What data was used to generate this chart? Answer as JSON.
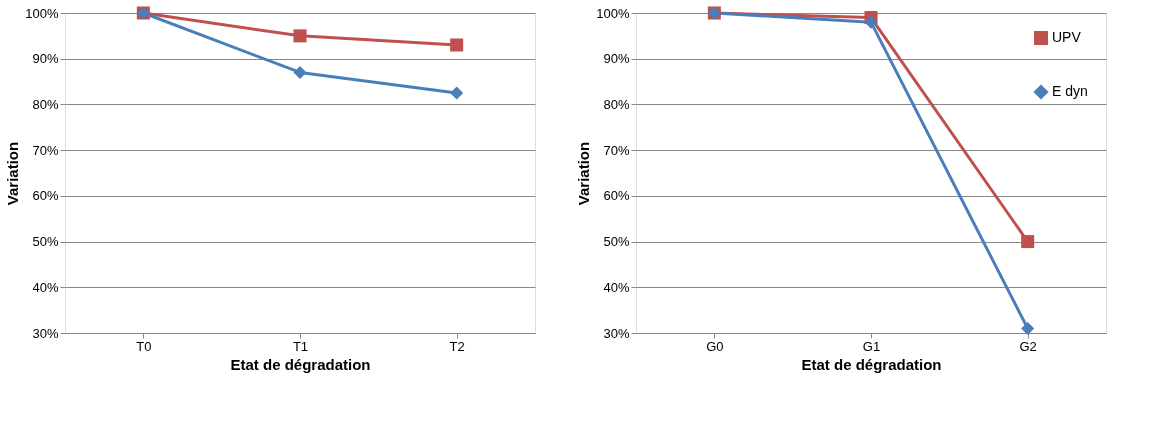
{
  "chart_data": [
    {
      "type": "line",
      "xlabel": "Etat de dégradation",
      "ylabel": "Variation",
      "categories": [
        "T0",
        "T1",
        "T2"
      ],
      "ylim": [
        30,
        100
      ],
      "yticks": [
        {
          "value": 30,
          "label": "30%"
        },
        {
          "value": 40,
          "label": "40%"
        },
        {
          "value": 50,
          "label": "50%"
        },
        {
          "value": 60,
          "label": "60%"
        },
        {
          "value": 70,
          "label": "70%"
        },
        {
          "value": 80,
          "label": "80%"
        },
        {
          "value": 90,
          "label": "90%"
        },
        {
          "value": 100,
          "label": "100%"
        }
      ],
      "grid": "y",
      "legend": false,
      "series": [
        {
          "color": "#c0504d",
          "marker": "square",
          "values": [
            100,
            95,
            93
          ]
        },
        {
          "color": "#4a7ebb",
          "marker": "diamond",
          "values": [
            100,
            87,
            82.5
          ]
        }
      ]
    },
    {
      "type": "line",
      "xlabel": "Etat de dégradation",
      "ylabel": "Variation",
      "categories": [
        "G0",
        "G1",
        "G2"
      ],
      "ylim": [
        30,
        100
      ],
      "yticks": [
        {
          "value": 30,
          "label": "30%"
        },
        {
          "value": 40,
          "label": "40%"
        },
        {
          "value": 50,
          "label": "50%"
        },
        {
          "value": 60,
          "label": "60%"
        },
        {
          "value": 70,
          "label": "70%"
        },
        {
          "value": 80,
          "label": "80%"
        },
        {
          "value": 90,
          "label": "90%"
        },
        {
          "value": 100,
          "label": "100%"
        }
      ],
      "grid": "y",
      "legend": "top right",
      "series": [
        {
          "name": "UPV",
          "color": "#c0504d",
          "marker": "square",
          "values": [
            100,
            99,
            50
          ]
        },
        {
          "name": "E dyn",
          "color": "#4a7ebb",
          "marker": "diamond",
          "values": [
            100,
            98,
            31
          ]
        }
      ]
    }
  ]
}
